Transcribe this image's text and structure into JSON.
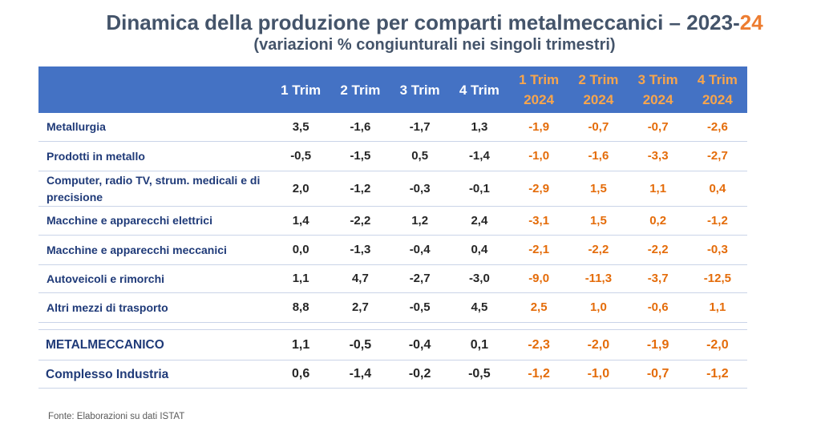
{
  "colors": {
    "title": "#44546A",
    "title_highlight": "#ED7D31",
    "header_bg": "#4472C4",
    "header_text": "#FFFFFF",
    "header_2024_text": "#F8A54C",
    "row_label": "#1F3A78",
    "value_text": "#262626",
    "value_2024_text": "#E46C0A",
    "rule": "#CAD4E8",
    "source_text": "#595959"
  },
  "chart_data": {
    "type": "table",
    "title": "Dinamica della produzione per comparti metalmeccanici – 2023-",
    "title_highlight": "24",
    "subtitle": "(variazioni % congiunturali nei singoli trimestri)",
    "columns": [
      {
        "label": "1 Trim"
      },
      {
        "label": "2 Trim"
      },
      {
        "label": "3 Trim"
      },
      {
        "label": "4 Trim"
      },
      {
        "label": "1 Trim",
        "year": "2024"
      },
      {
        "label": "2 Trim",
        "year": "2024"
      },
      {
        "label": "3 Trim",
        "year": "2024"
      },
      {
        "label": "4 Trim",
        "year": "2024"
      }
    ],
    "rows": [
      {
        "label": "Metallurgia",
        "values": [
          3.5,
          -1.6,
          -1.7,
          1.3,
          -1.9,
          -0.7,
          -0.7,
          -2.6
        ]
      },
      {
        "label": "Prodotti in metallo",
        "values": [
          -0.5,
          -1.5,
          0.5,
          -1.4,
          -1.0,
          -1.6,
          -3.3,
          -2.7
        ]
      },
      {
        "label": "Computer, radio TV, strum. medicali e di precisione",
        "values": [
          2.0,
          -1.2,
          -0.3,
          -0.1,
          -2.9,
          1.5,
          1.1,
          0.4
        ]
      },
      {
        "label": "Macchine e apparecchi elettrici",
        "values": [
          1.4,
          -2.2,
          1.2,
          2.4,
          -3.1,
          1.5,
          0.2,
          -1.2
        ]
      },
      {
        "label": "Macchine e apparecchi meccanici",
        "values": [
          0.0,
          -1.3,
          -0.4,
          0.4,
          -2.1,
          -2.2,
          -2.2,
          -0.3
        ]
      },
      {
        "label": "Autoveicoli e rimorchi",
        "values": [
          1.1,
          4.7,
          -2.7,
          -3.0,
          -9.0,
          -11.3,
          -3.7,
          -12.5
        ]
      },
      {
        "label": "Altri mezzi di trasporto",
        "values": [
          8.8,
          2.7,
          -0.5,
          4.5,
          2.5,
          1.0,
          -0.6,
          1.1
        ]
      }
    ],
    "aggregates": [
      {
        "label": "METALMECCANICO",
        "values": [
          1.1,
          -0.5,
          -0.4,
          0.1,
          -2.3,
          -2.0,
          -1.9,
          -2.0
        ]
      },
      {
        "label": "Complesso Industria",
        "values": [
          0.6,
          -1.4,
          -0.2,
          -0.5,
          -1.2,
          -1.0,
          -0.7,
          -1.2
        ]
      }
    ]
  },
  "source": "Fonte: Elaborazioni su dati ISTAT"
}
